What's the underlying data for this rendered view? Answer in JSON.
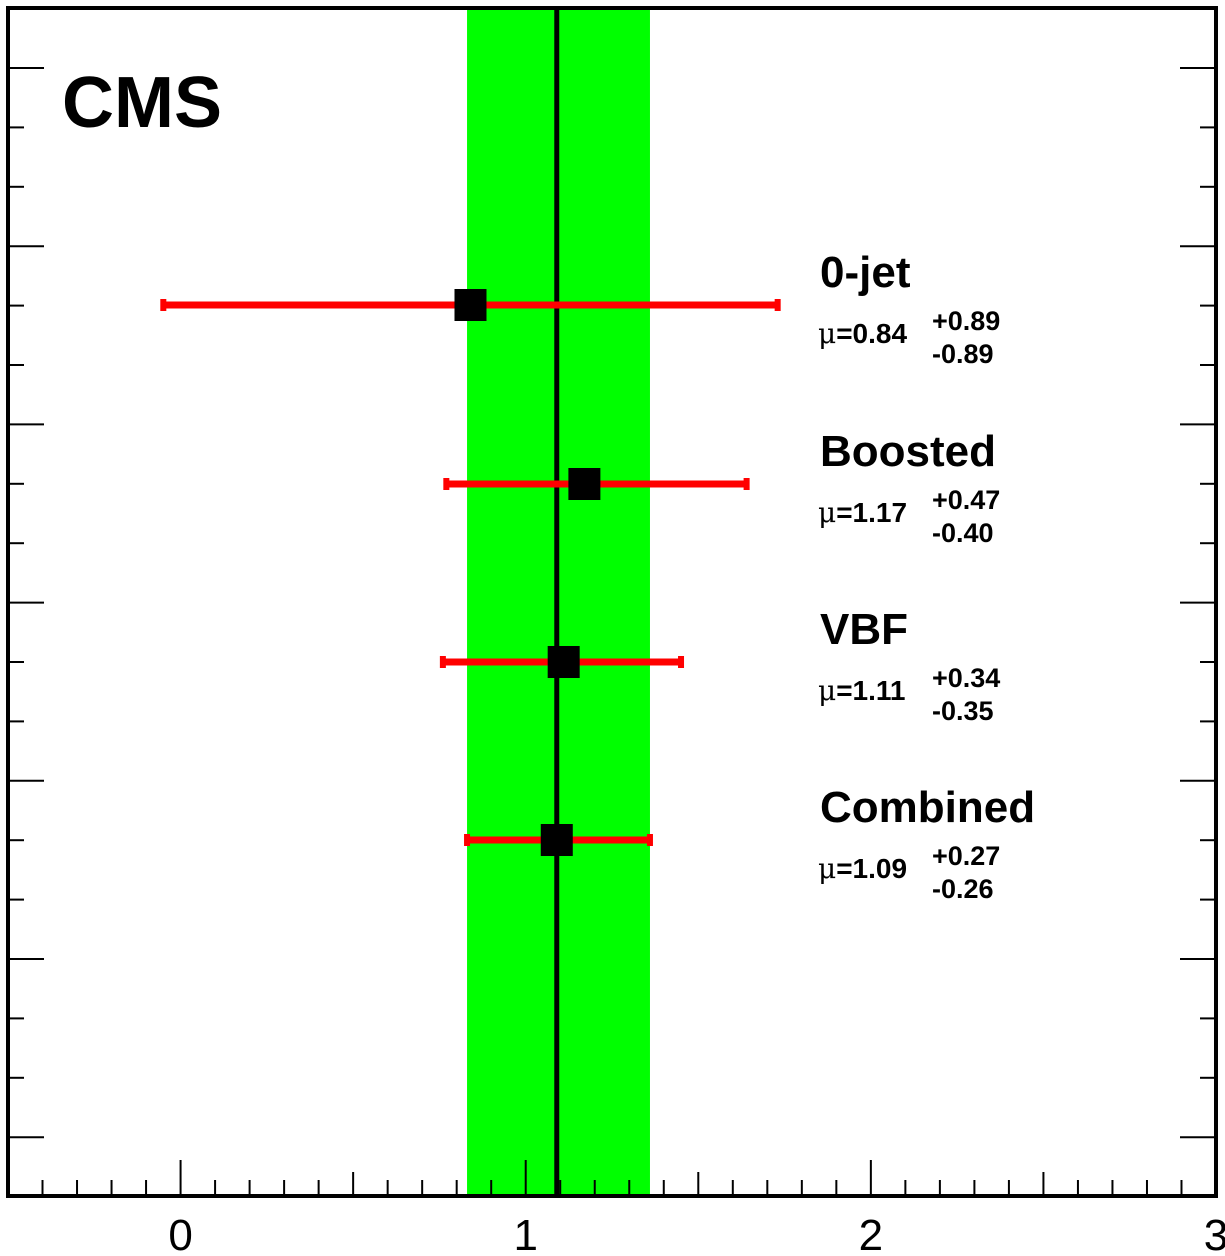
{
  "chart_data": {
    "type": "scatter",
    "title": "",
    "experiment_label": "CMS",
    "xlabel": "",
    "ylabel": "",
    "xlim": [
      -0.5,
      3.0
    ],
    "xticks": [
      0,
      1,
      2,
      3
    ],
    "xtick_labels": [
      "0",
      "1",
      "2",
      "3"
    ],
    "grid": false,
    "combined_band": {
      "center": 1.09,
      "low": 0.83,
      "high": 1.36,
      "color": "#00ff00"
    },
    "series": [
      {
        "label": "0-jet",
        "mu_text": "=0.84",
        "plus": "+0.89",
        "minus": "-0.89",
        "value": 0.84,
        "err_up": 0.89,
        "err_down": 0.89
      },
      {
        "label": "Boosted",
        "mu_text": "=1.17",
        "plus": "+0.47",
        "minus": "-0.40",
        "value": 1.17,
        "err_up": 0.47,
        "err_down": 0.4
      },
      {
        "label": "VBF",
        "mu_text": "=1.11",
        "plus": "+0.34",
        "minus": "-0.35",
        "value": 1.11,
        "err_up": 0.34,
        "err_down": 0.35
      },
      {
        "label": "Combined",
        "mu_text": "=1.09",
        "plus": "+0.27",
        "minus": "-0.26",
        "value": 1.09,
        "err_up": 0.27,
        "err_down": 0.26
      }
    ],
    "mu_symbol": "μ",
    "colors": {
      "band": "#00ff00",
      "error_bar": "#ff0000",
      "marker": "#000000",
      "axis": "#000000"
    }
  }
}
